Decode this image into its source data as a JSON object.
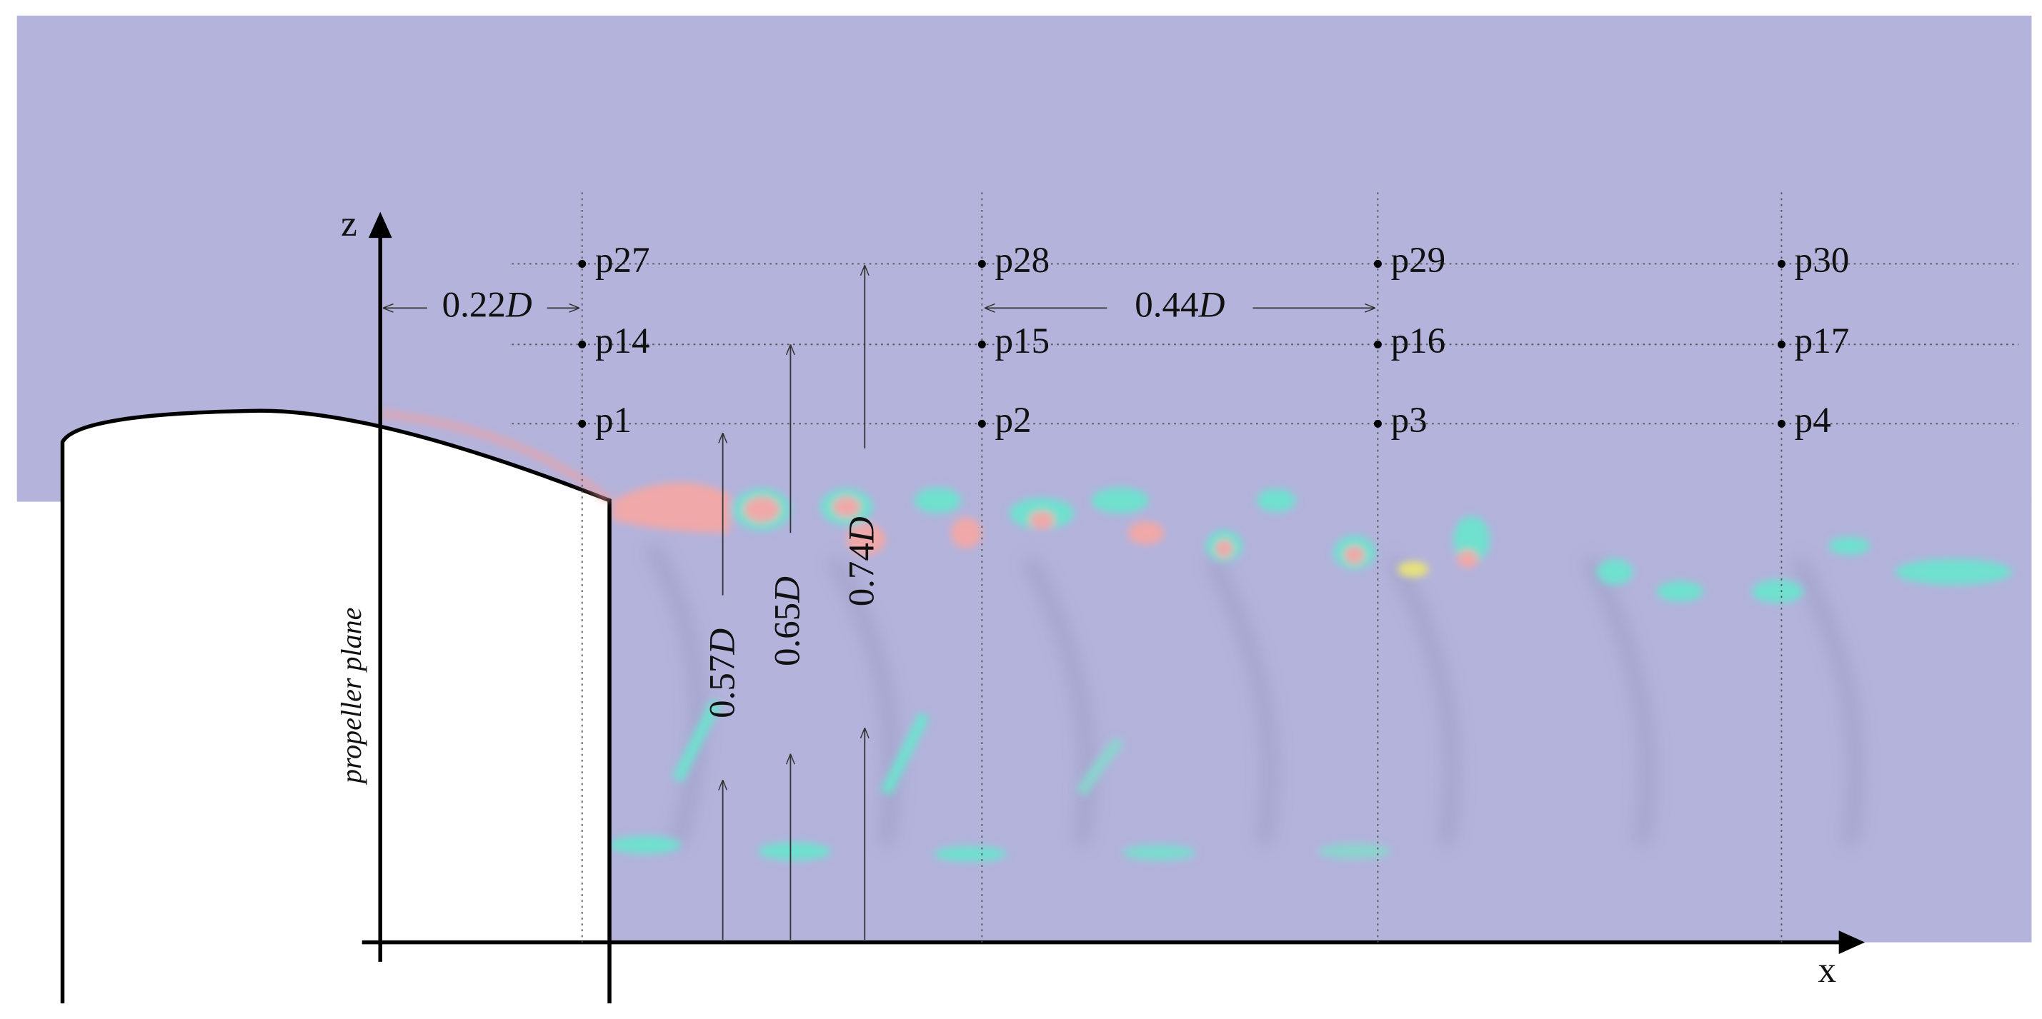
{
  "axes": {
    "z": "z",
    "x": "x"
  },
  "points": [
    [
      "p27",
      "p28",
      "p29",
      "p30"
    ],
    [
      "p14",
      "p15",
      "p16",
      "p17"
    ],
    [
      "p1",
      "p2",
      "p3",
      "p4"
    ]
  ],
  "dimensions": {
    "spacing_first": {
      "number": "0.22",
      "symbol": "D"
    },
    "spacing_columns": {
      "number": "0.44",
      "symbol": "D"
    },
    "height_row1": {
      "number": "0.57",
      "symbol": "D"
    },
    "height_row2": {
      "number": "0.65",
      "symbol": "D"
    },
    "height_row3": {
      "number": "0.74",
      "symbol": "D"
    }
  },
  "propeller_label": "propeller plane"
}
